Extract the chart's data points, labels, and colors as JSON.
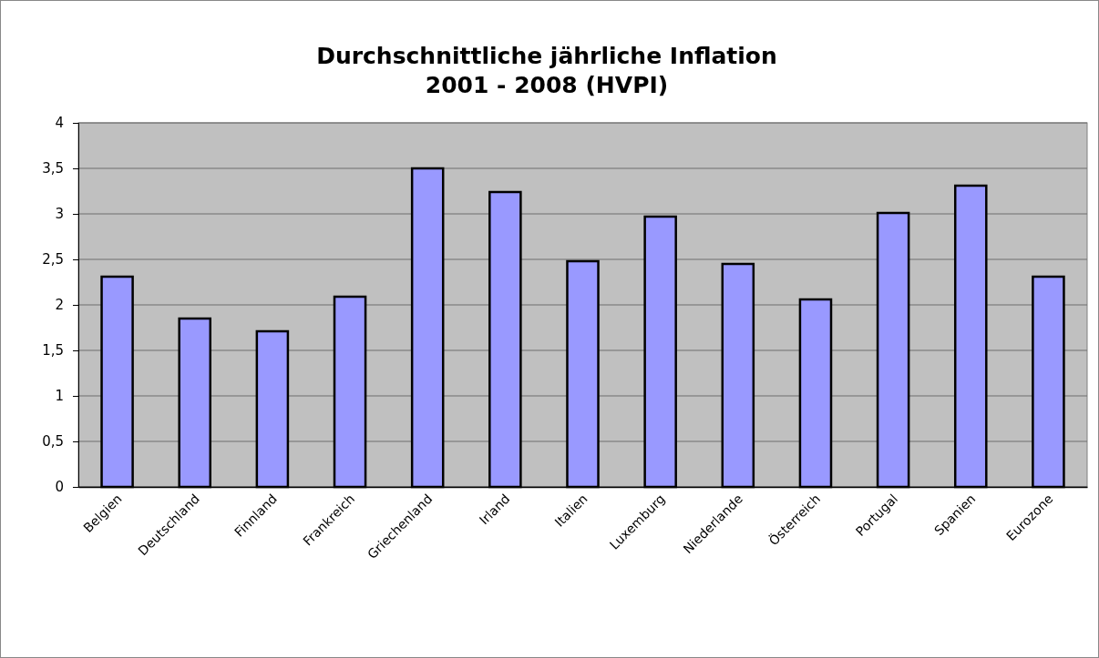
{
  "chart_data": {
    "type": "bar",
    "title": "Durchschnittliche jährliche Inflation\n2001 - 2008 (HVPI)",
    "categories": [
      "Belgien",
      "Deutschland",
      "Finnland",
      "Frankreich",
      "Griechenland",
      "Irland",
      "Italien",
      "Luxemburg",
      "Niederlande",
      "Österreich",
      "Portugal",
      "Spanien",
      "Eurozone"
    ],
    "values": [
      2.31,
      1.85,
      1.71,
      2.09,
      3.5,
      3.24,
      2.48,
      2.97,
      2.45,
      2.06,
      3.01,
      3.31,
      2.31
    ],
    "color": "#9999ff",
    "ylim": [
      0,
      4
    ],
    "yticks": [
      0,
      {
        "value": 0.5,
        "label": "0,5"
      },
      1,
      {
        "value": 1.5,
        "label": "1,5"
      },
      2,
      {
        "value": 2.5,
        "label": "2,5"
      },
      3,
      {
        "value": 3.5,
        "label": "3,5"
      },
      4
    ],
    "grid": "y"
  }
}
